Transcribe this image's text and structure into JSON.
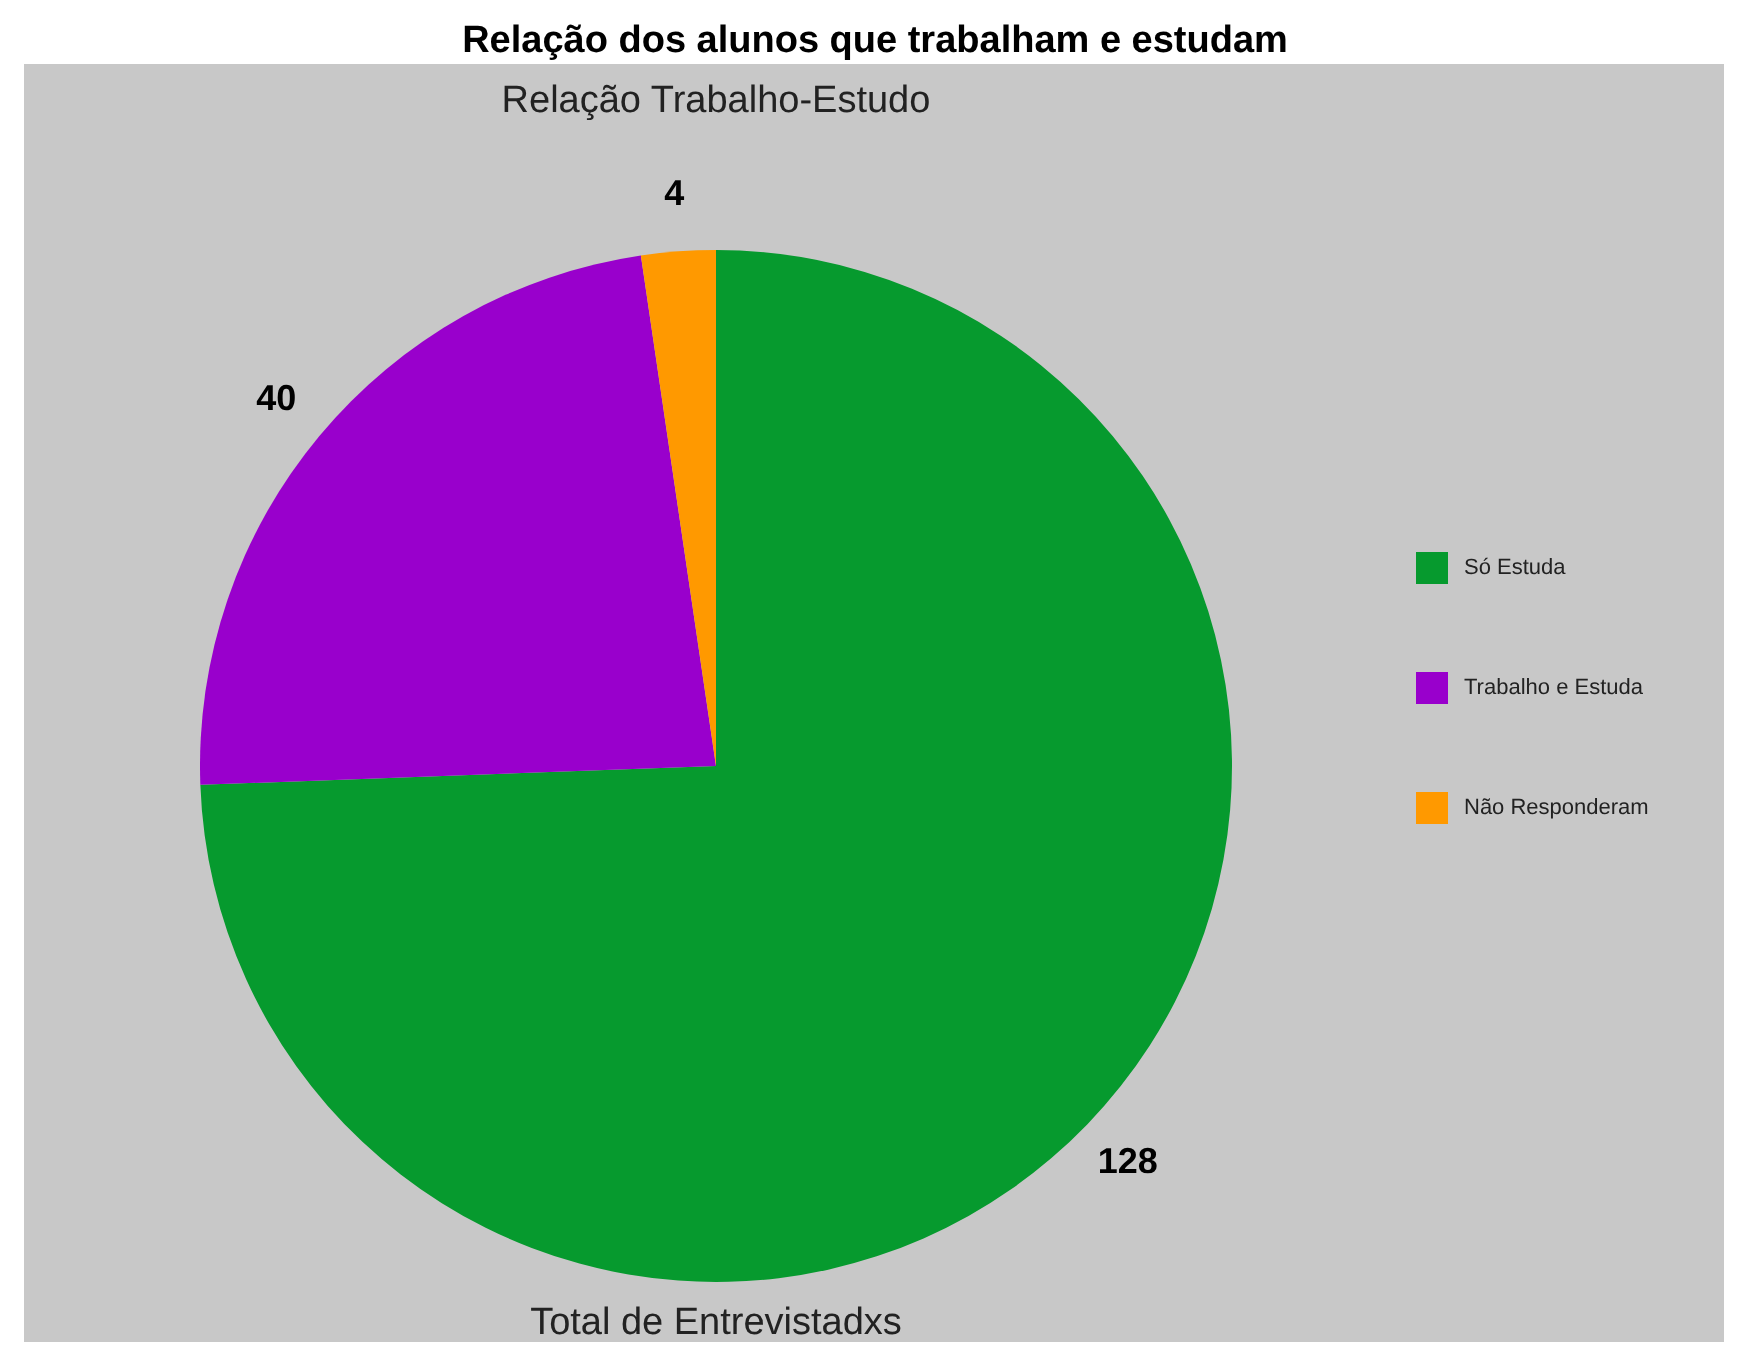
{
  "chart_data": {
    "type": "pie",
    "title": "Relação dos alunos que trabalham e estudam",
    "subtitle": "Relação Trabalho-Estudo",
    "xlabel": "Total de Entrevistadxs",
    "categories": [
      "Só Estuda",
      "Trabalho e Estuda",
      "Não Responderam"
    ],
    "values": [
      128,
      40,
      4
    ],
    "colors": [
      "#069a2e",
      "#9900cc",
      "#ff9900"
    ],
    "data_labels": true,
    "legend": "right"
  }
}
